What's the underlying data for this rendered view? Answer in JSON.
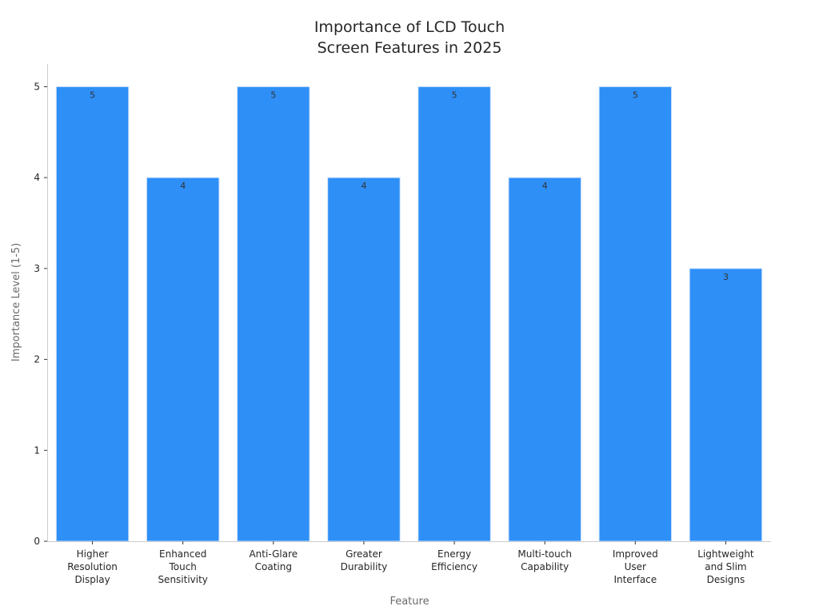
{
  "chart_data": {
    "type": "bar",
    "title": [
      "Importance of LCD Touch",
      "Screen Features in 2025"
    ],
    "xlabel": "Feature",
    "ylabel": "Importance Level (1-5)",
    "categories": [
      [
        "Higher",
        "Resolution",
        "Display"
      ],
      [
        "Enhanced",
        "Touch",
        "Sensitivity"
      ],
      [
        "Anti-Glare",
        "Coating"
      ],
      [
        "Greater",
        "Durability"
      ],
      [
        "Energy",
        "Efficiency"
      ],
      [
        "Multi-touch",
        "Capability"
      ],
      [
        "Improved",
        "User",
        "Interface"
      ],
      [
        "Lightweight",
        "and Slim",
        "Designs"
      ]
    ],
    "values": [
      5,
      4,
      5,
      4,
      5,
      4,
      5,
      3
    ],
    "ylim": [
      0,
      5.25
    ],
    "yticks": [
      0,
      1,
      2,
      3,
      4,
      5
    ],
    "bar_color": "#2e8ff7",
    "bar_edge_color": "#cfe3fb",
    "grid": false,
    "legend": "none"
  }
}
